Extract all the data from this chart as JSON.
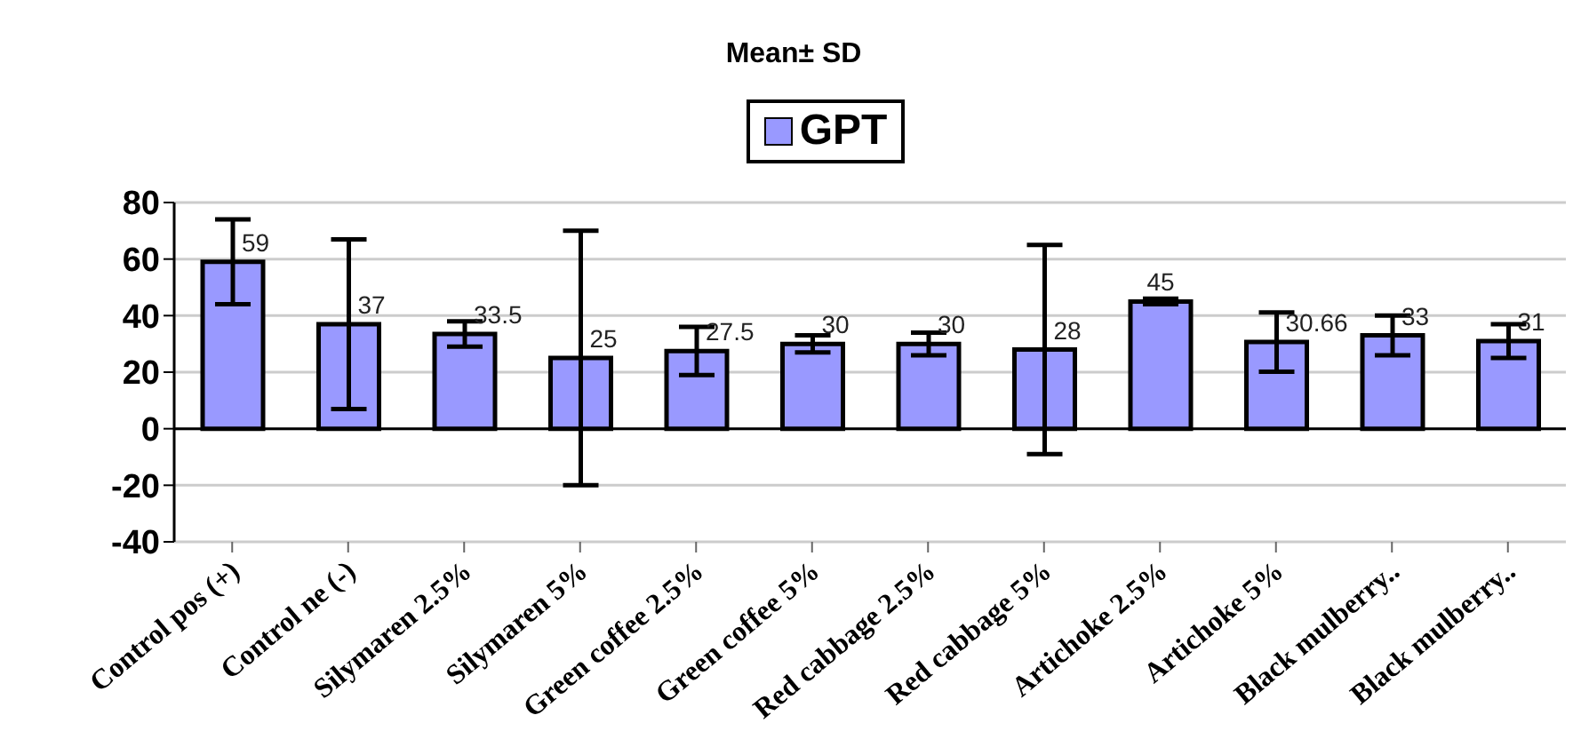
{
  "chart_data": {
    "type": "bar",
    "title": "Mean± SD",
    "categories": [
      "Control pos (+)",
      "Control ne (-)",
      "Silymaren 2.5%",
      "Silymaren 5%",
      "Green coffee 2.5%",
      "Green coffee 5%",
      "Red cabbage 2.5%",
      "Red cabbage 5%",
      "Artichoke 2.5%",
      "Artichoke 5%",
      "Black mulberry..",
      "Black mulberry.."
    ],
    "series": [
      {
        "name": "GPT",
        "color": "#9999ff",
        "values": [
          59,
          37,
          33.5,
          25,
          27.5,
          30,
          30,
          28,
          45,
          30.66,
          33,
          31
        ],
        "errors": [
          15,
          30,
          4.5,
          45,
          8.5,
          3,
          4,
          37,
          1,
          10.5,
          7,
          6
        ]
      }
    ],
    "ylim": [
      -40,
      80
    ],
    "yticks": [
      -40,
      -20,
      0,
      20,
      40,
      60,
      80
    ],
    "grid": "y",
    "legend": "top",
    "data_labels": true
  }
}
